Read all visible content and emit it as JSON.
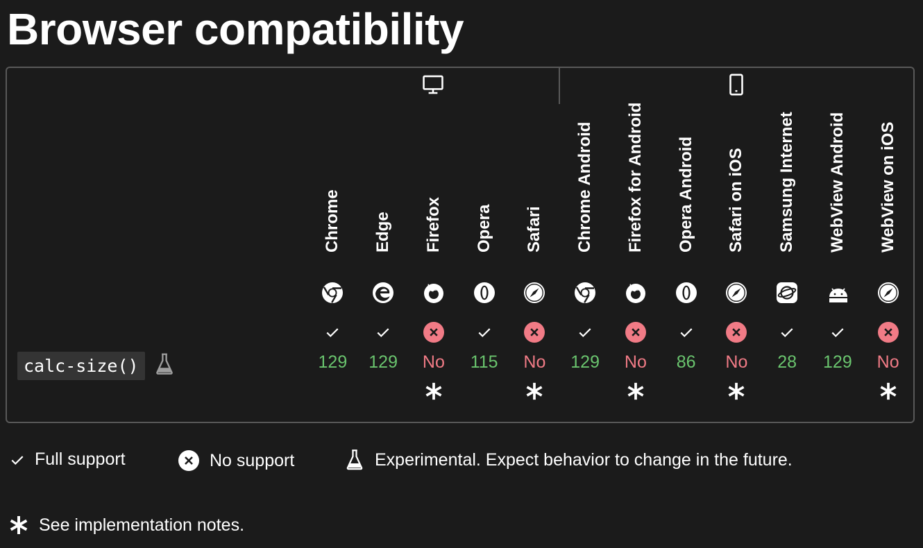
{
  "title": "Browser compatibility",
  "platforms": {
    "desktop": "desktop-icon",
    "mobile": "mobile-icon"
  },
  "browsers": [
    {
      "name": "Chrome",
      "icon": "chrome-icon"
    },
    {
      "name": "Edge",
      "icon": "edge-icon"
    },
    {
      "name": "Firefox",
      "icon": "firefox-icon"
    },
    {
      "name": "Opera",
      "icon": "opera-icon"
    },
    {
      "name": "Safari",
      "icon": "safari-icon"
    },
    {
      "name": "Chrome Android",
      "icon": "chrome-icon"
    },
    {
      "name": "Firefox for Android",
      "icon": "firefox-icon"
    },
    {
      "name": "Opera Android",
      "icon": "opera-icon"
    },
    {
      "name": "Safari on iOS",
      "icon": "safari-icon"
    },
    {
      "name": "Samsung Internet",
      "icon": "samsung-internet-icon"
    },
    {
      "name": "WebView Android",
      "icon": "android-icon"
    },
    {
      "name": "WebView on iOS",
      "icon": "safari-icon"
    }
  ],
  "feature": {
    "name": "calc-size()",
    "experimental": true,
    "support": [
      {
        "supported": true,
        "version": "129",
        "notes": false
      },
      {
        "supported": true,
        "version": "129",
        "notes": false
      },
      {
        "supported": false,
        "version": "No",
        "notes": true
      },
      {
        "supported": true,
        "version": "115",
        "notes": false
      },
      {
        "supported": false,
        "version": "No",
        "notes": true
      },
      {
        "supported": true,
        "version": "129",
        "notes": false
      },
      {
        "supported": false,
        "version": "No",
        "notes": true
      },
      {
        "supported": true,
        "version": "86",
        "notes": false
      },
      {
        "supported": false,
        "version": "No",
        "notes": true
      },
      {
        "supported": true,
        "version": "28",
        "notes": false
      },
      {
        "supported": true,
        "version": "129",
        "notes": false
      },
      {
        "supported": false,
        "version": "No",
        "notes": true
      }
    ]
  },
  "legend": {
    "full_support": "Full support",
    "no_support": "No support",
    "experimental": "Experimental. Expect behavior to change in the future.",
    "notes": "See implementation notes."
  },
  "colors": {
    "background": "#1b1b1b",
    "border": "#595959",
    "yes": "#6ac46e",
    "no": "#f17b86",
    "no_badge": "#f17b86"
  }
}
